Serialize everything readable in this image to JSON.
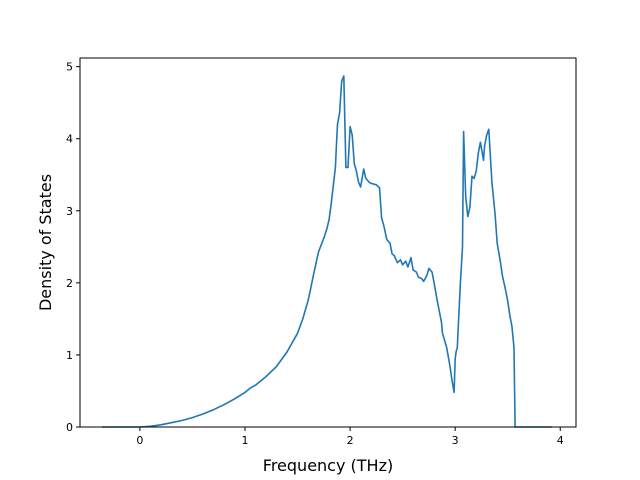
{
  "chart_data": {
    "type": "line",
    "title": "",
    "xlabel": "Frequency (THz)",
    "ylabel": "Density of States",
    "xlim": [
      -0.57,
      4.15
    ],
    "ylim": [
      0,
      5.12
    ],
    "xticks": [
      0,
      1,
      2,
      3,
      4
    ],
    "yticks": [
      0,
      1,
      2,
      3,
      4,
      5
    ],
    "grid": false,
    "line_color": "#1f77b4",
    "series": [
      {
        "x": [
          -0.36,
          -0.2,
          0.0,
          0.1,
          0.2,
          0.3,
          0.4,
          0.5,
          0.6,
          0.7,
          0.8,
          0.9,
          1.0,
          1.05,
          1.1,
          1.15,
          1.2,
          1.3,
          1.4,
          1.5,
          1.55,
          1.6,
          1.62,
          1.65,
          1.7,
          1.75,
          1.78,
          1.8,
          1.82,
          1.84,
          1.86,
          1.87,
          1.88,
          1.9,
          1.92,
          1.94,
          1.96,
          1.98,
          2.0,
          2.02,
          2.04,
          2.06,
          2.08,
          2.1,
          2.13,
          2.15,
          2.18,
          2.2,
          2.25,
          2.28,
          2.3,
          2.32,
          2.35,
          2.38,
          2.4,
          2.42,
          2.45,
          2.48,
          2.5,
          2.53,
          2.55,
          2.58,
          2.6,
          2.63,
          2.65,
          2.68,
          2.7,
          2.73,
          2.75,
          2.78,
          2.8,
          2.83,
          2.85,
          2.87,
          2.88,
          2.9,
          2.92,
          2.95,
          2.97,
          2.99,
          3.0,
          3.01,
          3.02,
          3.03,
          3.05,
          3.07,
          3.08,
          3.1,
          3.12,
          3.14,
          3.16,
          3.18,
          3.2,
          3.22,
          3.24,
          3.27,
          3.28,
          3.3,
          3.32,
          3.35,
          3.38,
          3.4,
          3.43,
          3.45,
          3.48,
          3.5,
          3.52,
          3.54,
          3.56,
          3.57,
          3.6,
          3.7,
          3.8,
          3.92
        ],
        "y": [
          0,
          0,
          0,
          0.01,
          0.03,
          0.06,
          0.09,
          0.13,
          0.18,
          0.24,
          0.31,
          0.39,
          0.48,
          0.54,
          0.58,
          0.64,
          0.7,
          0.84,
          1.04,
          1.3,
          1.5,
          1.75,
          1.88,
          2.1,
          2.43,
          2.62,
          2.75,
          2.88,
          3.1,
          3.35,
          3.6,
          3.9,
          4.2,
          4.36,
          4.8,
          4.87,
          3.6,
          3.6,
          4.17,
          4.05,
          3.65,
          3.55,
          3.4,
          3.33,
          3.58,
          3.45,
          3.4,
          3.38,
          3.36,
          3.32,
          2.9,
          2.8,
          2.6,
          2.55,
          2.4,
          2.38,
          2.28,
          2.32,
          2.25,
          2.3,
          2.22,
          2.35,
          2.18,
          2.15,
          2.08,
          2.06,
          2.02,
          2.1,
          2.2,
          2.15,
          2.0,
          1.75,
          1.6,
          1.45,
          1.3,
          1.2,
          1.1,
          0.85,
          0.65,
          0.48,
          0.95,
          1.05,
          1.1,
          1.4,
          2.0,
          2.5,
          4.1,
          3.2,
          2.92,
          3.05,
          3.48,
          3.45,
          3.55,
          3.8,
          3.95,
          3.7,
          3.9,
          4.05,
          4.13,
          3.4,
          2.95,
          2.55,
          2.3,
          2.1,
          1.9,
          1.75,
          1.55,
          1.4,
          1.1,
          0.0,
          0,
          0,
          0,
          0
        ]
      }
    ]
  }
}
